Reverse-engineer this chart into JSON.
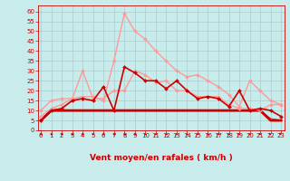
{
  "title": "",
  "xlabel": "Vent moyen/en rafales ( km/h )",
  "background_color": "#c8ecec",
  "grid_color": "#aacccc",
  "x_ticks": [
    0,
    1,
    2,
    3,
    4,
    5,
    6,
    7,
    8,
    9,
    10,
    11,
    12,
    13,
    14,
    15,
    16,
    17,
    18,
    19,
    20,
    21,
    22,
    23
  ],
  "y_ticks": [
    0,
    5,
    10,
    15,
    20,
    25,
    30,
    35,
    40,
    45,
    50,
    55,
    60
  ],
  "xlim": [
    -0.3,
    23.3
  ],
  "ylim": [
    0,
    63
  ],
  "lines": [
    {
      "x": [
        0,
        1,
        2,
        3,
        4,
        5,
        6,
        7,
        8,
        9,
        10,
        11,
        12,
        13,
        14,
        15,
        16,
        17,
        18,
        19,
        20,
        21,
        22,
        23
      ],
      "y": [
        5,
        10,
        10,
        10,
        10,
        10,
        10,
        10,
        10,
        10,
        10,
        10,
        10,
        10,
        10,
        10,
        10,
        10,
        10,
        10,
        10,
        10,
        5,
        5
      ],
      "color": "#cc0000",
      "lw": 2.0,
      "marker": null,
      "zorder": 3
    },
    {
      "x": [
        0,
        1,
        2,
        3,
        4,
        5,
        6,
        7,
        8,
        9,
        10,
        11,
        12,
        13,
        14,
        15,
        16,
        17,
        18,
        19,
        20,
        21,
        22,
        23
      ],
      "y": [
        5,
        10,
        10,
        10,
        10,
        10,
        10,
        10,
        10,
        10,
        10,
        10,
        10,
        10,
        10,
        10,
        10,
        10,
        10,
        10,
        10,
        10,
        5,
        5
      ],
      "color": "#cc0000",
      "lw": 1.5,
      "marker": null,
      "zorder": 3
    },
    {
      "x": [
        0,
        1,
        2,
        3,
        4,
        5,
        6,
        7,
        8,
        9,
        10,
        11,
        12,
        13,
        14,
        15,
        16,
        17,
        18,
        19,
        20,
        21,
        22,
        23
      ],
      "y": [
        5,
        10,
        10,
        10,
        10,
        10,
        10,
        10,
        10,
        10,
        10,
        10,
        10,
        10,
        10,
        10,
        10,
        10,
        10,
        10,
        10,
        10,
        5,
        5
      ],
      "color": "#cc0000",
      "lw": 1.0,
      "marker": null,
      "zorder": 3
    },
    {
      "x": [
        0,
        1,
        2,
        3,
        4,
        5,
        6,
        7,
        8,
        9,
        10,
        11,
        12,
        13,
        14,
        15,
        16,
        17,
        18,
        19,
        20,
        21,
        22,
        23
      ],
      "y": [
        5,
        10,
        10,
        10,
        10,
        10,
        10,
        10,
        10,
        10,
        10,
        10,
        10,
        10,
        10,
        10,
        10,
        10,
        10,
        10,
        10,
        10,
        5,
        5
      ],
      "color": "#cc0000",
      "lw": 0.7,
      "marker": null,
      "zorder": 3
    },
    {
      "x": [
        0,
        1,
        2,
        3,
        4,
        5,
        6,
        7,
        8,
        9,
        10,
        11,
        12,
        13,
        14,
        15,
        16,
        17,
        18,
        19,
        20,
        21,
        22,
        23
      ],
      "y": [
        5,
        10,
        10,
        10,
        10,
        10,
        10,
        10,
        10,
        10,
        10,
        10,
        10,
        10,
        10,
        10,
        10,
        10,
        10,
        10,
        10,
        10,
        6,
        5
      ],
      "color": "#cc0000",
      "lw": 0.5,
      "marker": null,
      "zorder": 3
    },
    {
      "x": [
        0,
        1,
        2,
        3,
        4,
        5,
        6,
        7,
        8,
        9,
        10,
        11,
        12,
        13,
        14,
        15,
        16,
        17,
        18,
        19,
        20,
        21,
        22,
        23
      ],
      "y": [
        5,
        10,
        11,
        15,
        16,
        15,
        22,
        10,
        32,
        29,
        25,
        25,
        21,
        25,
        20,
        16,
        17,
        16,
        12,
        20,
        10,
        11,
        10,
        7
      ],
      "color": "#cc0000",
      "lw": 1.2,
      "marker": "D",
      "ms": 2.0,
      "zorder": 5
    },
    {
      "x": [
        0,
        1,
        2,
        3,
        4,
        5,
        6,
        7,
        8,
        9,
        10,
        11,
        12,
        13,
        14,
        15,
        16,
        17,
        18,
        19,
        20,
        21,
        22,
        23
      ],
      "y": [
        10,
        15,
        16,
        16,
        30,
        16,
        16,
        20,
        20,
        30,
        28,
        24,
        25,
        20,
        20,
        17,
        17,
        17,
        13,
        11,
        11,
        10,
        13,
        13
      ],
      "color": "#ff9999",
      "lw": 1.0,
      "marker": "D",
      "ms": 2.0,
      "zorder": 4
    },
    {
      "x": [
        0,
        1,
        2,
        3,
        4,
        5,
        6,
        7,
        8,
        9,
        10,
        11,
        12,
        13,
        14,
        15,
        16,
        17,
        18,
        19,
        20,
        21,
        22,
        23
      ],
      "y": [
        7,
        11,
        13,
        16,
        17,
        17,
        15,
        35,
        59,
        50,
        46,
        40,
        35,
        30,
        27,
        28,
        25,
        22,
        18,
        12,
        25,
        20,
        15,
        13
      ],
      "color": "#ff9999",
      "lw": 1.0,
      "marker": "D",
      "ms": 2.0,
      "zorder": 4
    }
  ],
  "arrow_angles_deg": [
    0,
    0,
    20,
    30,
    30,
    20,
    10,
    0,
    0,
    -10,
    -10,
    -10,
    -10,
    -10,
    -10,
    -20,
    -20,
    -30,
    -30,
    -40,
    -40,
    -50,
    -60,
    -70
  ],
  "xlabel_color": "#cc0000",
  "xlabel_fontsize": 6.5,
  "tick_fontsize": 5.0,
  "tick_color": "#cc0000",
  "spine_color": "#cc0000"
}
